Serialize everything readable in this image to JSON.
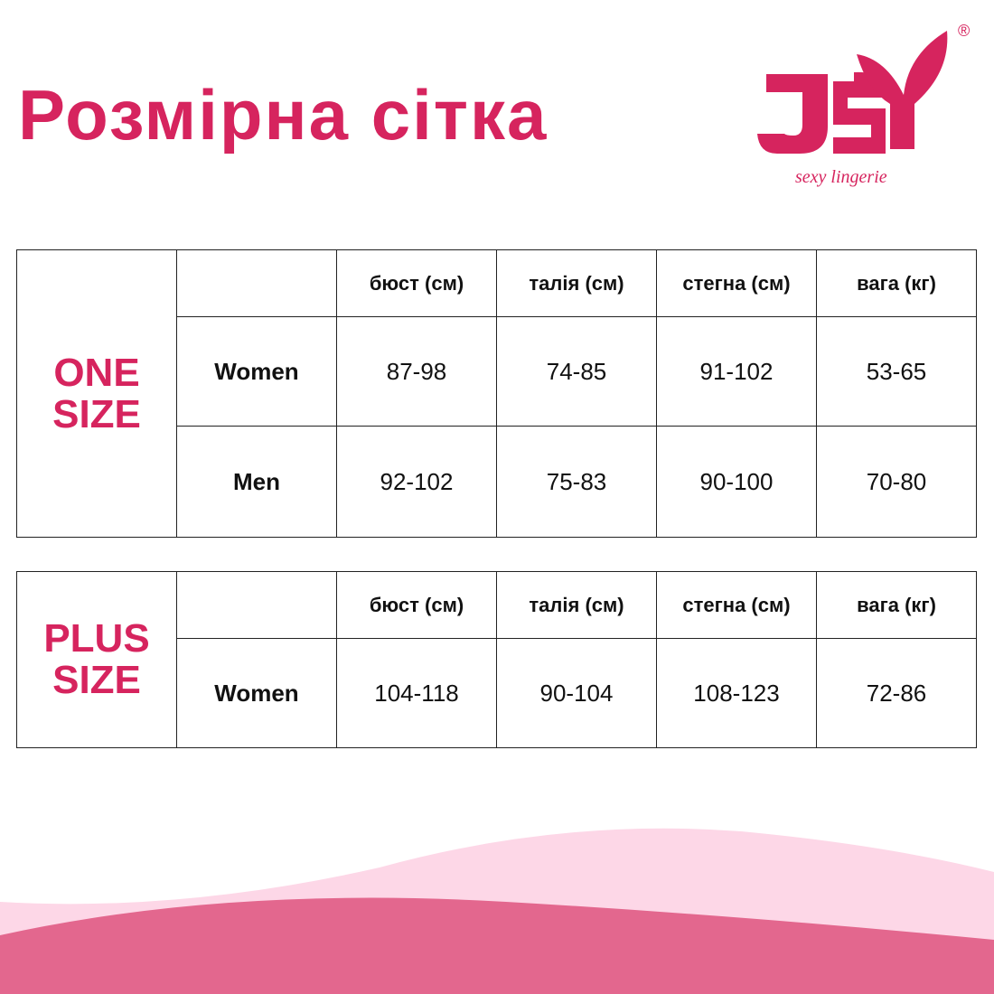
{
  "title": "Розмірна сітка",
  "logo": {
    "text": "JSY",
    "tagline": "sexy lingerie",
    "registered": "®",
    "color": "#d6245e"
  },
  "columns": [
    "бюст (см)",
    "талія (см)",
    "стегна (см)",
    "вага (кг)"
  ],
  "tables": [
    {
      "group_line1": "ONE",
      "group_line2": "SIZE",
      "rows": [
        {
          "label": "Women",
          "values": [
            "87-98",
            "74-85",
            "91-102",
            "53-65"
          ]
        },
        {
          "label": "Men",
          "values": [
            "92-102",
            "75-83",
            "90-100",
            "70-80"
          ]
        }
      ]
    },
    {
      "group_line1": "PLUS",
      "group_line2": "SIZE",
      "rows": [
        {
          "label": "Women",
          "values": [
            "104-118",
            "90-104",
            "108-123",
            "72-86"
          ]
        }
      ]
    }
  ],
  "colors": {
    "accent": "#d6245e",
    "wave_light": "#fdd7e7",
    "wave_dark": "#e3678e"
  }
}
